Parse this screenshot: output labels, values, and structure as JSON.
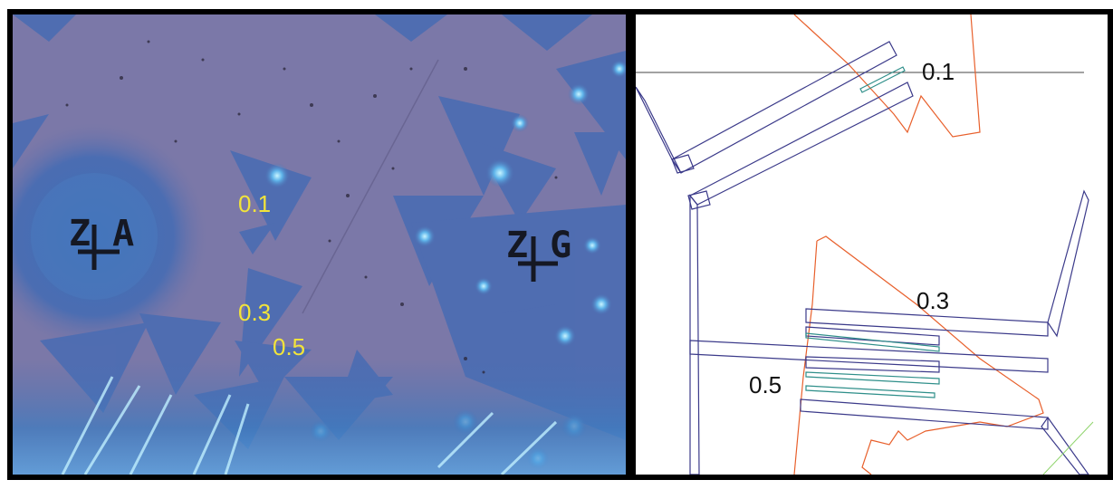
{
  "micrograph": {
    "label_a": "0.1",
    "label_b": "0.3",
    "label_c": "0.5",
    "marker_left": "Z A",
    "marker_right": "Z G",
    "colors": {
      "substrate": "#7b78a8",
      "flake": "#4a6fb3",
      "flake_bright": "#5aa8e6",
      "label": "#f2e43a"
    }
  },
  "layout_drawing": {
    "label_a": "0.1",
    "label_b": "0.3",
    "label_c": "0.5",
    "colors": {
      "electrode": "#3b3a8a",
      "flake_outline": "#e8602c",
      "channel": "#2f8f8a",
      "guide_line": "#444444"
    }
  }
}
